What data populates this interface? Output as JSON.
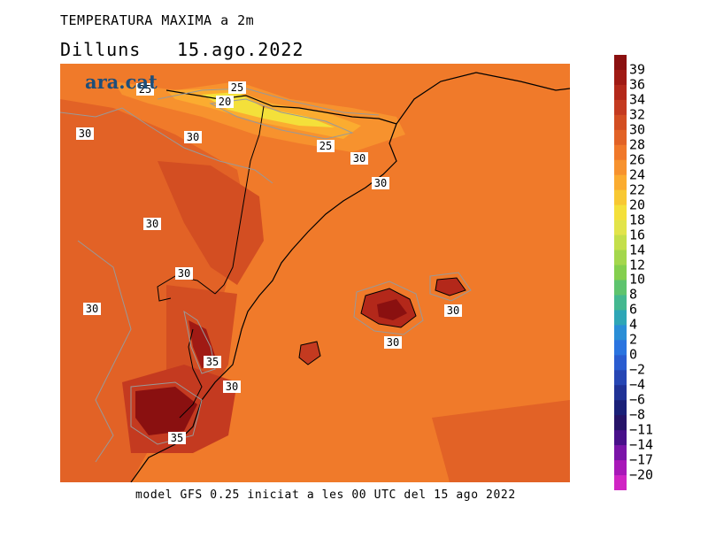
{
  "header": {
    "title": "TEMPERATURA MAXIMA a 2m",
    "day": "Dilluns",
    "date": "15.ago.2022"
  },
  "logo": {
    "text": "ara.cat"
  },
  "footer": {
    "text": "model GFS 0.25 iniciat a les 00 UTC del 15 ago 2022"
  },
  "colorbar": {
    "labels": [
      "39",
      "36",
      "34",
      "32",
      "30",
      "28",
      "26",
      "24",
      "22",
      "20",
      "18",
      "16",
      "14",
      "12",
      "10",
      "8",
      "6",
      "4",
      "2",
      "0",
      "−2",
      "−4",
      "−6",
      "−8",
      "−11",
      "−14",
      "−17",
      "−20"
    ],
    "colors": [
      "#8a1010",
      "#a01a14",
      "#b3281a",
      "#c43a20",
      "#d34e22",
      "#e26226",
      "#f0782a",
      "#f7922e",
      "#fbac30",
      "#f8c832",
      "#f4e03a",
      "#e2e44a",
      "#c4df4a",
      "#a4d74c",
      "#84cf4e",
      "#5ec46e",
      "#44b890",
      "#2ea6b6",
      "#2a8ed6",
      "#2a74e0",
      "#2a5cd0",
      "#2646b4",
      "#203296",
      "#1a2078",
      "#261468",
      "#48108a",
      "#7a14a8",
      "#a818b8",
      "#d024c4"
    ]
  },
  "map": {
    "contour_labels": [
      "25",
      "20",
      "25",
      "25",
      "30",
      "30",
      "30",
      "30",
      "30",
      "30",
      "30",
      "35",
      "30",
      "35",
      "30",
      "30"
    ]
  }
}
